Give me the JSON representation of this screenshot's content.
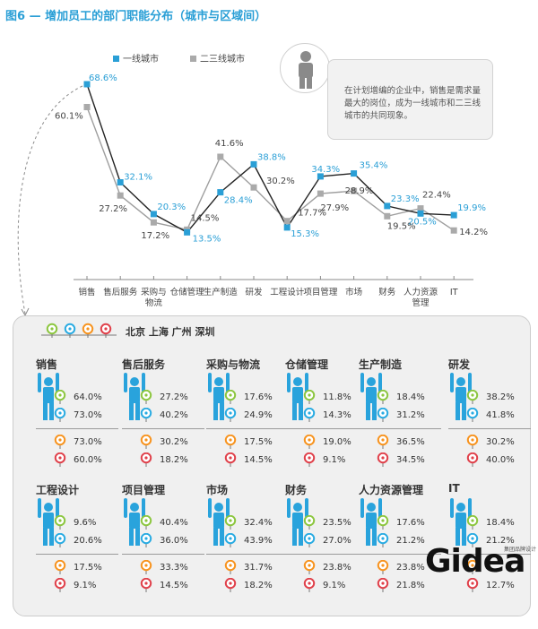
{
  "title": "图6 — 增加员工的部门职能分布（城市与区域间）",
  "callout": {
    "text": "在计划增编的企业中，销售是需求量最大的岗位，成为一线城市和二三线城市的共同现象。"
  },
  "colors": {
    "tier1": "#2a9fd6",
    "tier23": "#aaaaaa",
    "title": "#2a9fd6",
    "beijing": "#8cc63f",
    "shanghai": "#29abe2",
    "guangzhou": "#f7931e",
    "shenzhen": "#e0404a",
    "figure": "#29a3dc"
  },
  "icons": {
    "callout_icon": "person-icon",
    "figure_icon": "person-arms-up-icon",
    "legend_icon": "map-pin-icon"
  },
  "chart_data": {
    "type": "line",
    "categories": [
      "销售",
      "售后服务",
      "采购与\n物流",
      "仓储管理",
      "生产制造",
      "研发",
      "工程设计",
      "项目管理",
      "市场",
      "财务",
      "人力资源\n管理",
      "IT"
    ],
    "series": [
      {
        "name": "一线城市",
        "values": [
          68.6,
          32.1,
          20.3,
          13.5,
          28.4,
          38.8,
          15.3,
          34.3,
          35.4,
          23.3,
          20.5,
          19.9
        ]
      },
      {
        "name": "二三线城市",
        "values": [
          60.1,
          27.2,
          17.2,
          14.5,
          41.6,
          30.2,
          17.7,
          27.9,
          28.9,
          19.5,
          22.4,
          14.2
        ]
      }
    ],
    "value_labels": {
      "tier1": [
        "68.6%",
        "32.1%",
        "20.3%",
        "13.5%",
        "28.4%",
        "38.8%",
        "15.3%",
        "34.3%",
        "35.4%",
        "23.3%",
        "20.5%",
        "19.9%"
      ],
      "tier23": [
        "60.1%",
        "27.2%",
        "17.2%",
        "14.5%",
        "41.6%",
        "30.2%",
        "17.7%",
        "27.9%",
        "28.9%",
        "19.5%",
        "22.4%",
        "14.2%"
      ]
    },
    "ylim": [
      10,
      70
    ],
    "grid": false,
    "legend": "top"
  },
  "panel": {
    "legend_label": "北京 上海 广州 深圳",
    "cities": [
      "北京",
      "上海",
      "广州",
      "深圳"
    ],
    "categories": [
      {
        "name": "销售",
        "values": [
          "64.0%",
          "73.0%",
          "73.0%",
          "60.0%"
        ]
      },
      {
        "name": "售后服务",
        "values": [
          "27.2%",
          "40.2%",
          "30.2%",
          "18.2%"
        ]
      },
      {
        "name": "采购与物流",
        "values": [
          "17.6%",
          "24.9%",
          "17.5%",
          "14.5%"
        ]
      },
      {
        "name": "仓储管理",
        "values": [
          "11.8%",
          "14.3%",
          "19.0%",
          "9.1%"
        ]
      },
      {
        "name": "生产制造",
        "values": [
          "18.4%",
          "31.2%",
          "36.5%",
          "34.5%"
        ]
      },
      {
        "name": "研发",
        "values": [
          "38.2%",
          "41.8%",
          "30.2%",
          "40.0%"
        ]
      },
      {
        "name": "工程设计",
        "values": [
          "9.6%",
          "20.6%",
          "17.5%",
          "9.1%"
        ]
      },
      {
        "name": "项目管理",
        "values": [
          "40.4%",
          "36.0%",
          "33.3%",
          "14.5%"
        ]
      },
      {
        "name": "市场",
        "values": [
          "32.4%",
          "43.9%",
          "31.7%",
          "18.2%"
        ]
      },
      {
        "name": "财务",
        "values": [
          "23.5%",
          "27.0%",
          "23.8%",
          "9.1%"
        ]
      },
      {
        "name": "人力资源管理",
        "values": [
          "17.6%",
          "21.2%",
          "23.8%",
          "21.8%"
        ]
      },
      {
        "name": "IT",
        "values": [
          "18.4%",
          "21.2%",
          "",
          "12.7%"
        ]
      }
    ]
  },
  "watermark": {
    "text": "Gidea",
    "small": "集团品牌设计"
  }
}
